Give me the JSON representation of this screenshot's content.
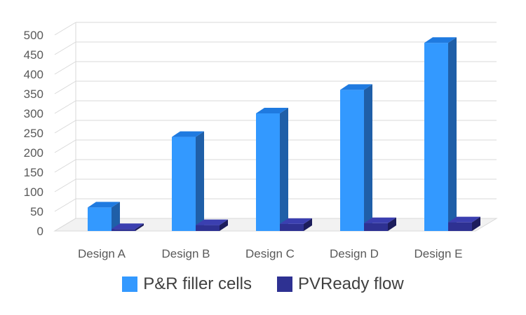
{
  "chart_data": {
    "type": "bar",
    "title": "",
    "xlabel": "",
    "ylabel": "",
    "categories": [
      "Design A",
      "Design B",
      "Design C",
      "Design D",
      "Design E"
    ],
    "series": [
      {
        "name": "P&R filler cells",
        "values": [
          60,
          240,
          300,
          360,
          480
        ],
        "color": "#3399ff",
        "side_color": "#1f5fa8",
        "top_color": "#1f7ae0"
      },
      {
        "name": "PVReady flow",
        "values": [
          5,
          15,
          18,
          20,
          22
        ],
        "color": "#2e3192",
        "side_color": "#1c1d5c",
        "top_color": "#3b3fb0"
      }
    ],
    "ylim": [
      0,
      500
    ],
    "yticks": [
      "0",
      "50",
      "100",
      "150",
      "200",
      "250",
      "300",
      "350",
      "400",
      "450",
      "500"
    ],
    "grid": true,
    "view": "3d-column",
    "legend_position": "bottom"
  }
}
